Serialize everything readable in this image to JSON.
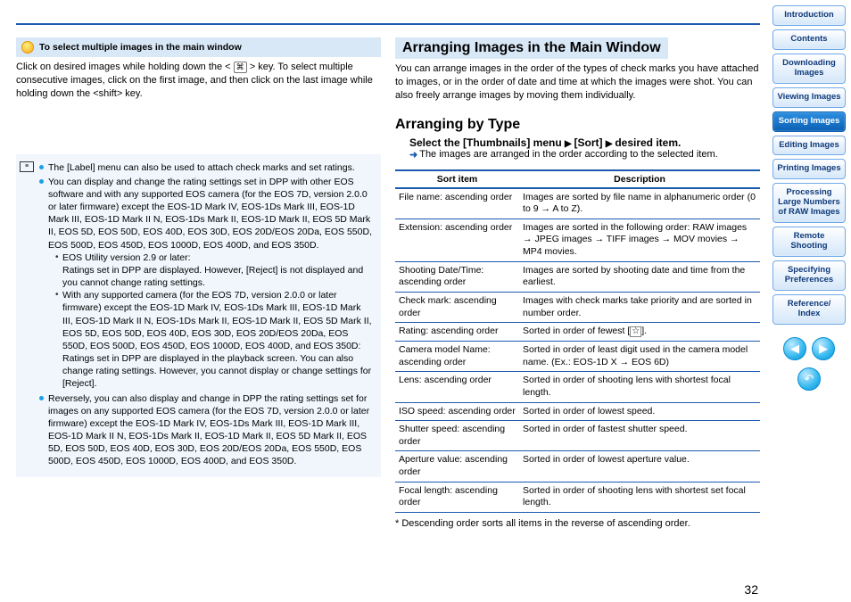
{
  "colors": {
    "accent": "#1b5aae",
    "tipbg": "#d9e8f7",
    "notebg": "#f0f6fc",
    "bullet": "#1aa0e6"
  },
  "tip": {
    "heading": "To select multiple images in the main window",
    "body_pre": "Click on desired images while holding down the < ",
    "body_post": " > key. To select multiple consecutive images, click on the first image, and then click on the last image while holding down the <shift> key.",
    "cmd_glyph": "⌘"
  },
  "notes": {
    "b1": "The [Label] menu can also be used to attach check marks and set ratings.",
    "b2": "You can display and change the rating settings set in DPP with other EOS software and with any supported EOS camera (for the EOS 7D, version 2.0.0 or later firmware) except the EOS-1D Mark IV, EOS-1Ds Mark III, EOS-1D Mark III, EOS-1D Mark II N, EOS-1Ds Mark II, EOS-1D Mark II, EOS 5D Mark II, EOS 5D, EOS 50D, EOS 40D, EOS 30D, EOS 20D/EOS 20Da, EOS 550D, EOS 500D, EOS 450D, EOS 1000D, EOS 400D, and EOS 350D.",
    "b2s1a": "EOS Utility version 2.9 or later:",
    "b2s1b": "Ratings set in DPP are displayed. However, [Reject] is not displayed and you cannot change rating settings.",
    "b2s2a": "With any supported camera (for the EOS 7D, version 2.0.0 or later firmware) except the EOS-1D Mark IV, EOS-1Ds Mark III, EOS-1D Mark III, EOS-1D Mark II N, EOS-1Ds Mark II, EOS-1D Mark II, EOS 5D Mark II, EOS 5D, EOS 50D, EOS 40D, EOS 30D, EOS 20D/EOS 20Da, EOS 550D, EOS 500D, EOS 450D, EOS 1000D, EOS 400D, and EOS 350D:",
    "b2s2b": "Ratings set in DPP are displayed in the playback screen. You can also change rating settings. However, you cannot display or change settings for [Reject].",
    "b3": "Reversely, you can also display and change in DPP the rating settings set for images on any supported EOS camera (for the EOS 7D, version 2.0.0 or later firmware) except the EOS-1D Mark IV, EOS-1Ds Mark III, EOS-1D Mark III, EOS-1D Mark II N, EOS-1Ds Mark II, EOS-1D Mark II, EOS 5D Mark II, EOS 5D, EOS 50D, EOS 40D, EOS 30D, EOS 20D/EOS 20Da, EOS 550D, EOS 500D, EOS 450D, EOS 1000D, EOS 400D, and EOS 350D."
  },
  "arranging": {
    "heading": "Arranging Images in the Main Window",
    "intro": "You can arrange images in the order of the types of check marks you have attached to images, or in the order of date and time at which the images were shot. You can also freely arrange images by moving them individually.",
    "sub_heading": "Arranging by Type",
    "instr_a": "Select the [Thumbnails] menu",
    "instr_b": "[Sort]",
    "instr_c": "desired item.",
    "result": "The images are arranged in the order according to the selected item."
  },
  "table": {
    "h1": "Sort item",
    "h2": "Description",
    "rows": [
      {
        "a": "File name: ascending order",
        "b": "Images are sorted by file name in alphanumeric order (0 to 9 → A to Z)."
      },
      {
        "a": "Extension: ascending order",
        "b": "Images are sorted in the following order: RAW images → JPEG images → TIFF images → MOV movies → MP4 movies."
      },
      {
        "a": "Shooting Date/Time: ascending order",
        "b": "Images are sorted by shooting date and time from the earliest."
      },
      {
        "a": "Check mark: ascending order",
        "b": "Images with check marks take priority and are sorted in number order."
      },
      {
        "a": "Rating: ascending order",
        "b_pre": "Sorted in order of fewest [",
        "b_post": "].",
        "star": true
      },
      {
        "a": "Camera model Name: ascending order",
        "b": "Sorted in order of least digit used in the camera model name. (Ex.: EOS-1D X → EOS 6D)"
      },
      {
        "a": "Lens: ascending order",
        "b": "Sorted in order of shooting lens with shortest focal length."
      },
      {
        "a": "ISO speed: ascending order",
        "b": "Sorted in order of lowest speed."
      },
      {
        "a": "Shutter speed: ascending order",
        "b": "Sorted in order of fastest shutter speed."
      },
      {
        "a": "Aperture value: ascending order",
        "b": "Sorted in order of lowest aperture value."
      },
      {
        "a": "Focal length: ascending order",
        "b": "Sorted in order of shooting lens with shortest set focal length."
      }
    ],
    "footnote": "* Descending order sorts all items in the reverse of ascending order."
  },
  "page_number": "32",
  "nav": {
    "items": [
      {
        "key": "intro",
        "label": "Introduction"
      },
      {
        "key": "contents",
        "label": "Contents"
      },
      {
        "key": "download",
        "label": "Downloading Images"
      },
      {
        "key": "viewing",
        "label": "Viewing Images"
      },
      {
        "key": "sorting",
        "label": "Sorting Images",
        "active": true
      },
      {
        "key": "editing",
        "label": "Editing Images"
      },
      {
        "key": "printing",
        "label": "Printing Images"
      },
      {
        "key": "processing",
        "label": "Processing Large Numbers of RAW Images"
      },
      {
        "key": "remote",
        "label": "Remote Shooting"
      },
      {
        "key": "prefs",
        "label": "Specifying Preferences"
      },
      {
        "key": "ref",
        "label": "Reference/ Index"
      }
    ]
  }
}
